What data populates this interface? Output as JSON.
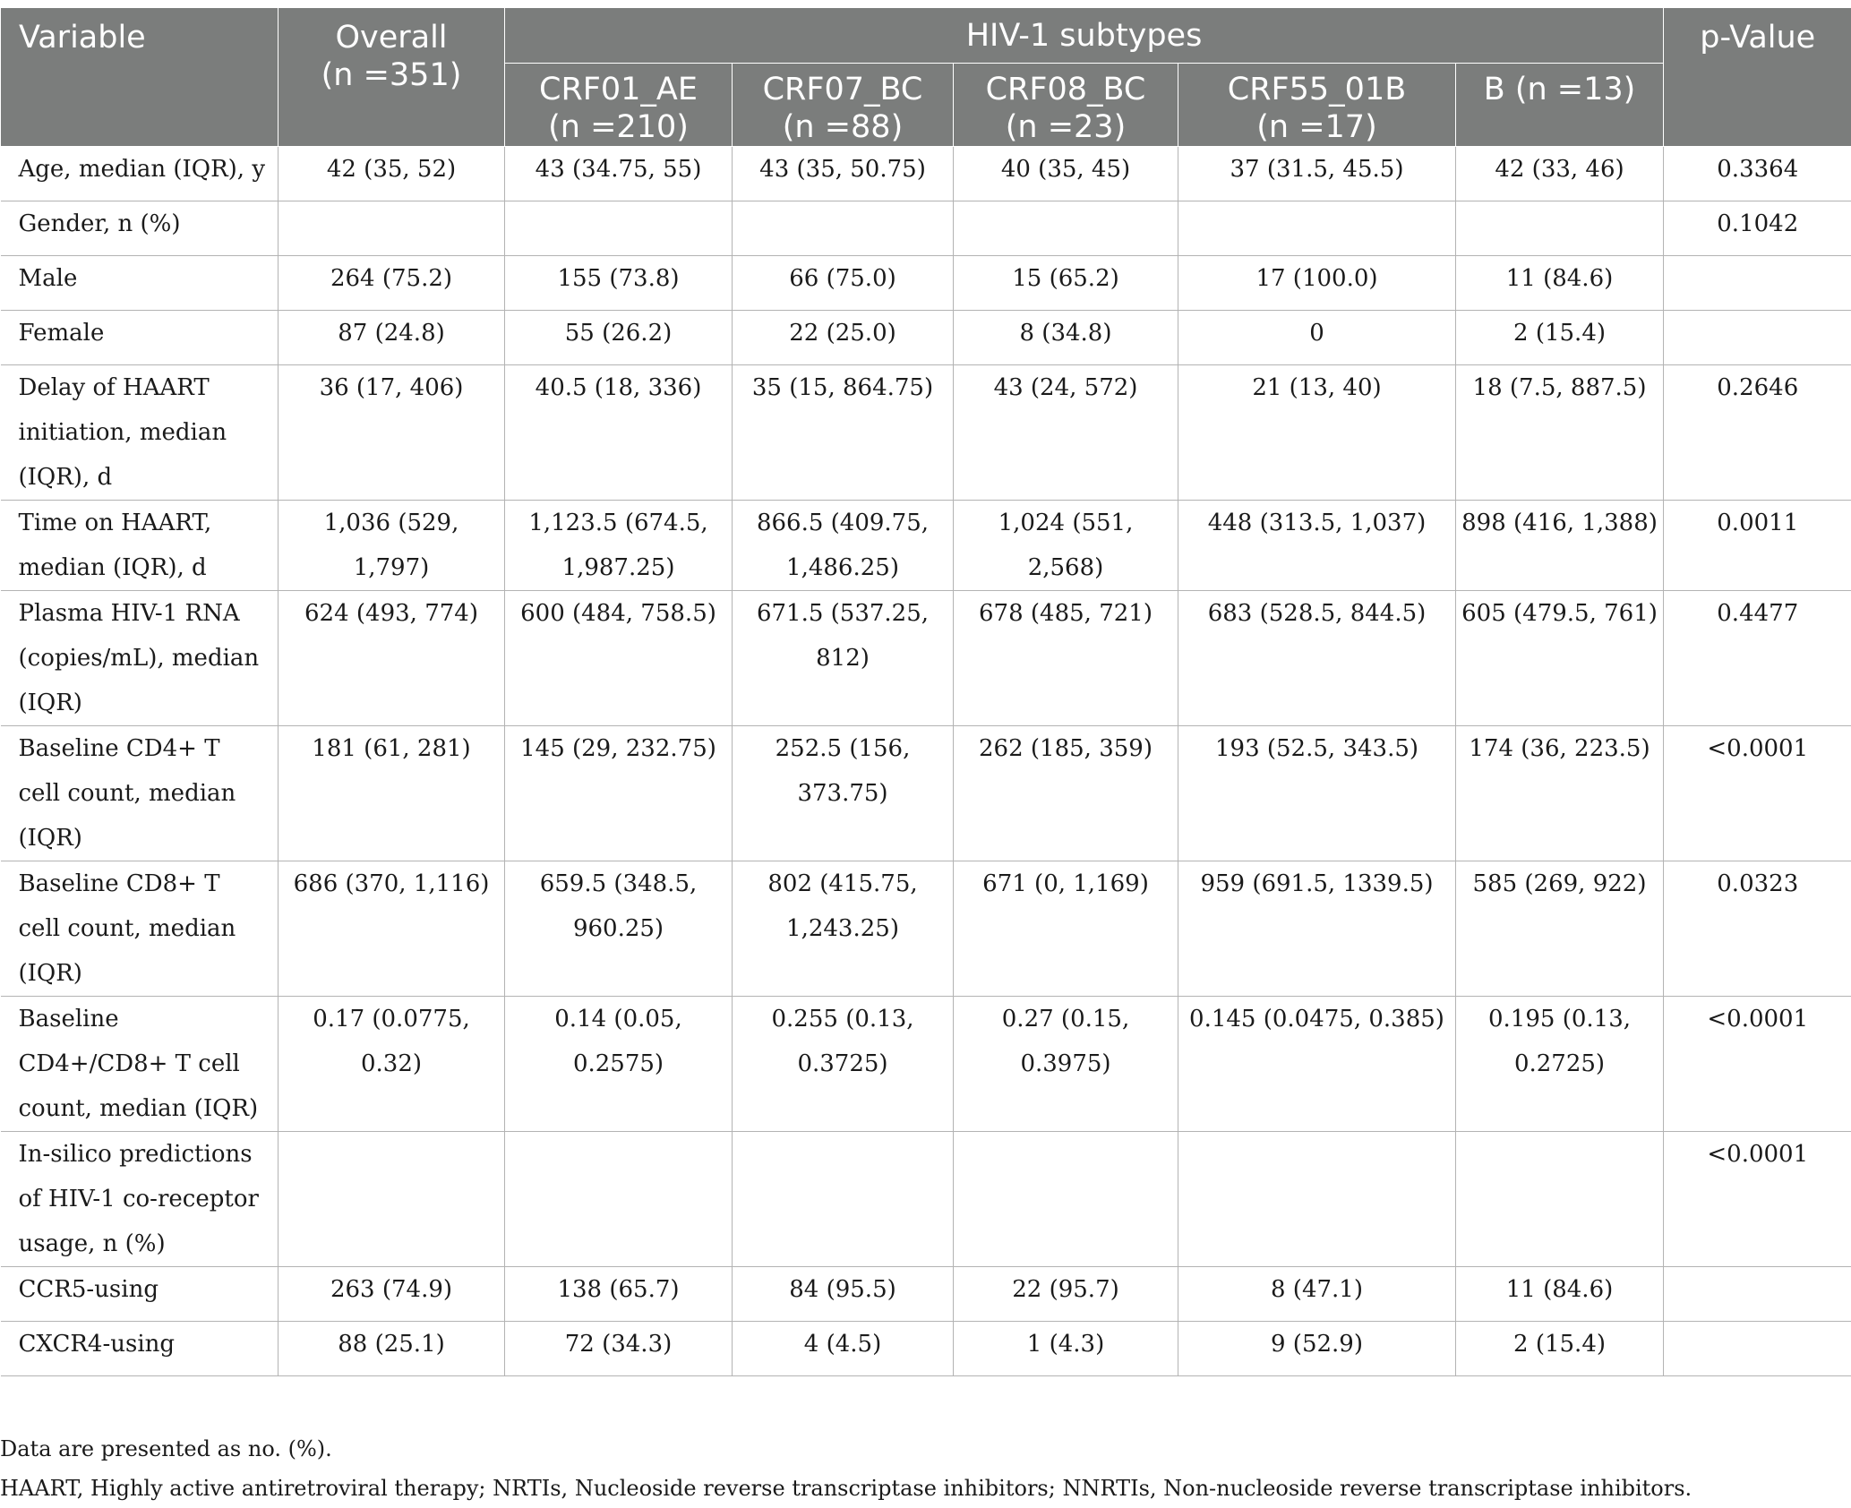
{
  "header": {
    "variable": "Variable",
    "overall_label": "Overall",
    "overall_n": "(n =351)",
    "group": "HIV-1 subtypes",
    "pvalue": "p-Value",
    "subtypes": [
      {
        "name": "CRF01_AE",
        "n": "(n =210)"
      },
      {
        "name": "CRF07_BC",
        "n": "(n =88)"
      },
      {
        "name": "CRF08_BC",
        "n": "(n =23)"
      },
      {
        "name": "CRF55_01B",
        "n": "(n =17)"
      },
      {
        "name": "B (n =13)",
        "n": ""
      }
    ]
  },
  "rows": [
    {
      "label": "Age, median (IQR), y",
      "overall": "42 (35, 52)",
      "crf01": "43 (34.75, 55)",
      "crf07": "43 (35, 50.75)",
      "crf08": "40 (35, 45)",
      "crf55": "37 (31.5, 45.5)",
      "b": "42 (33, 46)",
      "p": "0.3364"
    },
    {
      "label": "Gender, n (%)",
      "overall": "",
      "crf01": "",
      "crf07": "",
      "crf08": "",
      "crf55": "",
      "b": "",
      "p": "0.1042"
    },
    {
      "label": "Male",
      "overall": "264 (75.2)",
      "crf01": "155 (73.8)",
      "crf07": "66 (75.0)",
      "crf08": "15 (65.2)",
      "crf55": "17 (100.0)",
      "b": "11 (84.6)",
      "p": ""
    },
    {
      "label": "Female",
      "overall": "87 (24.8)",
      "crf01": "55 (26.2)",
      "crf07": "22 (25.0)",
      "crf08": "8 (34.8)",
      "crf55": "0",
      "b": "2 (15.4)",
      "p": ""
    },
    {
      "label": "Delay of HAART initiation, median (IQR), d",
      "overall": "36 (17, 406)",
      "crf01": "40.5 (18, 336)",
      "crf07": "35 (15, 864.75)",
      "crf08": "43 (24, 572)",
      "crf55": "21 (13, 40)",
      "b": "18 (7.5, 887.5)",
      "p": "0.2646"
    },
    {
      "label": "Time on HAART, median (IQR), d",
      "overall": "1,036 (529, 1,797)",
      "crf01": "1,123.5 (674.5, 1,987.25)",
      "crf07": "866.5 (409.75, 1,486.25)",
      "crf08": "1,024 (551, 2,568)",
      "crf55": "448 (313.5, 1,037)",
      "b": "898 (416, 1,388)",
      "p": "0.0011"
    },
    {
      "label": "Plasma HIV-1 RNA (copies/mL), median (IQR)",
      "overall": "624 (493, 774)",
      "crf01": "600 (484, 758.5)",
      "crf07": "671.5 (537.25, 812)",
      "crf08": "678 (485, 721)",
      "crf55": "683 (528.5, 844.5)",
      "b": "605 (479.5, 761)",
      "p": "0.4477"
    },
    {
      "label": "Baseline CD4+ T cell count, median (IQR)",
      "overall": "181 (61, 281)",
      "crf01": "145 (29, 232.75)",
      "crf07": "252.5 (156, 373.75)",
      "crf08": "262 (185, 359)",
      "crf55": "193 (52.5, 343.5)",
      "b": "174 (36, 223.5)",
      "p": "<0.0001"
    },
    {
      "label": "Baseline CD8+ T cell count, median (IQR)",
      "overall": "686 (370, 1,116)",
      "crf01": "659.5 (348.5, 960.25)",
      "crf07": "802 (415.75, 1,243.25)",
      "crf08": "671 (0, 1,169)",
      "crf55": "959 (691.5, 1339.5)",
      "b": "585 (269, 922)",
      "p": "0.0323"
    },
    {
      "label": "Baseline CD4+/CD8+ T cell count, median (IQR)",
      "overall": "0.17 (0.0775, 0.32)",
      "crf01": "0.14 (0.05, 0.2575)",
      "crf07": "0.255 (0.13, 0.3725)",
      "crf08": "0.27 (0.15, 0.3975)",
      "crf55": "0.145 (0.0475, 0.385)",
      "b": "0.195 (0.13, 0.2725)",
      "p": "<0.0001"
    },
    {
      "label": "In-silico predictions of HIV-1 co-receptor usage, n (%)",
      "overall": "",
      "crf01": "",
      "crf07": "",
      "crf08": "",
      "crf55": "",
      "b": "",
      "p": "<0.0001"
    },
    {
      "label": "CCR5-using",
      "overall": "263 (74.9)",
      "crf01": "138 (65.7)",
      "crf07": "84 (95.5)",
      "crf08": "22 (95.7)",
      "crf55": "8 (47.1)",
      "b": "11 (84.6)",
      "p": ""
    },
    {
      "label": "CXCR4-using",
      "overall": "88 (25.1)",
      "crf01": "72 (34.3)",
      "crf07": "4 (4.5)",
      "crf08": "1 (4.3)",
      "crf55": "9 (52.9)",
      "b": "2 (15.4)",
      "p": ""
    }
  ],
  "footnotes": [
    "Data are presented as no. (%).",
    "HAART, Highly active antiretroviral therapy; NRTIs, Nucleoside reverse transcriptase inhibitors; NNRTIs, Non-nucleoside reverse transcriptase inhibitors."
  ],
  "colors": {
    "header_bg": "#7b7d7c",
    "header_text": "#ffffff",
    "grid": "#b3b3b3"
  }
}
